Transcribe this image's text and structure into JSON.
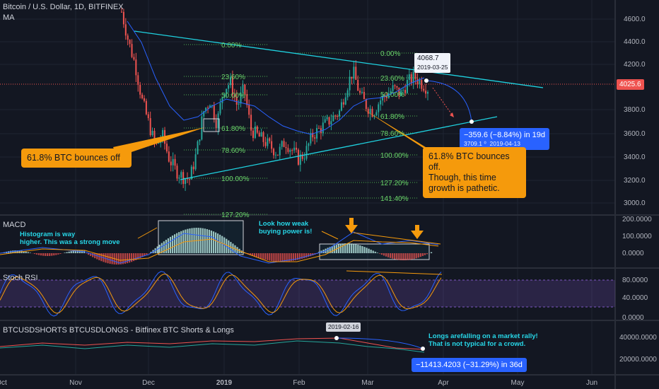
{
  "header": {
    "title": "Bitcoin / U.S. Dollar, 1D, BITFINEX",
    "ma": "MA"
  },
  "colors": {
    "bg": "#131722",
    "up": "#26a69a",
    "down": "#ef5350",
    "cyan": "#1fd2e0",
    "orange": "#f59a0c",
    "fib": "#6ad46a",
    "grid": "#1f2433",
    "axis": "#2a2e39"
  },
  "current_price": "4025.6",
  "callouts": {
    "left": "61.8% BTC bounces off",
    "right_1": "61.8% BTC bounces off.",
    "right_2": "Though, this time",
    "right_3": "growth is pathetic."
  },
  "notes": {
    "macd_1": "Histogram is way",
    "macd_2": "higher. This was a strong move",
    "macd_3": "Look how weak",
    "macd_4": "buying power is!",
    "shorts_1": "Longs arefalling on a market rally!",
    "shorts_2": "That is not typical for a crowd."
  },
  "measure_price": {
    "line1": "−359.6 (−8.84%) in 19d",
    "line2a": "3709.1",
    "line2b": "2019-04-13"
  },
  "measure_shorts": {
    "line1": "−11413.4203 (−31.29%) in 36d"
  },
  "tooltip_price": {
    "value": "4068.7",
    "date": "2019-03-25"
  },
  "tooltip_shorts": {
    "date": "2019-02-16"
  },
  "panes": {
    "macd": "MACD",
    "rsi": "Stoch RSI",
    "shorts": "BTCUSDSHORTS BTCUSDLONGS - Bitfinex BTC Shorts & Longs"
  },
  "fib_left": [
    "0.00%",
    "23.60%",
    "50.00%",
    "61.80%",
    "78.60%",
    "100.00%",
    "127.20%"
  ],
  "fib_right": [
    "0.00%",
    "23.60%",
    "50.00%",
    "61.80%",
    "78.60%",
    "100.00%",
    "127.20%",
    "141.40%"
  ],
  "chart_data": {
    "type": "candlestick",
    "title": "Bitcoin / U.S. Dollar, 1D, BITFINEX",
    "x_ticks": [
      "Oct",
      "Nov",
      "Dec",
      "2019",
      "Feb",
      "Mar",
      "Apr",
      "May",
      "Jun"
    ],
    "price_axis": [
      "4600.0",
      "4400.0",
      "4200.0",
      "3800.0",
      "3600.0",
      "3400.0",
      "3200.0",
      "3000.0"
    ],
    "price_range": [
      2950,
      4750
    ],
    "macd_axis": [
      "200.0000",
      "100.0000",
      "0.0000"
    ],
    "rsi_axis": [
      "80.0000",
      "40.0000",
      "0.0000"
    ],
    "shorts_axis": [
      "40000.0000",
      "20000.0000"
    ],
    "close_path": [
      4650,
      4400,
      4200,
      3900,
      3700,
      3500,
      3600,
      3400,
      3300,
      3250,
      3230,
      3450,
      3800,
      3900,
      3700,
      4000,
      4050,
      3850,
      4000,
      3650,
      3600,
      3550,
      3500,
      3450,
      3550,
      3480,
      3400,
      3450,
      3600,
      3650,
      3700,
      3750,
      3800,
      4000,
      4150,
      3950,
      3850,
      3800,
      3900,
      3950,
      4000,
      3950,
      4050,
      4100,
      4050,
      4000
    ]
  }
}
